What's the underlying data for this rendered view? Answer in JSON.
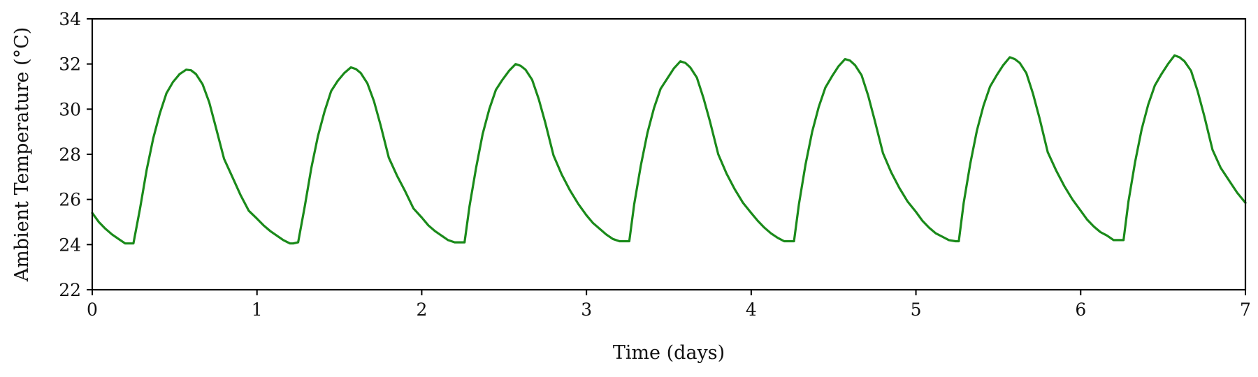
{
  "chart_data": {
    "type": "line",
    "title": "",
    "xlabel": "Time (days)",
    "ylabel": "Ambient Temperature (°C)",
    "xlim": [
      0,
      7
    ],
    "ylim": [
      22,
      34
    ],
    "x_ticks": [
      "0",
      "1",
      "2",
      "3",
      "4",
      "5",
      "6",
      "7"
    ],
    "y_ticks": [
      "22",
      "24",
      "26",
      "28",
      "30",
      "32",
      "34"
    ],
    "grid": false,
    "legend": "none",
    "line_color": "#1a8a1a",
    "series": [
      {
        "x": [
          0.0,
          0.04,
          0.08,
          0.12,
          0.16,
          0.2,
          0.24,
          0.25,
          0.29,
          0.33,
          0.37,
          0.41,
          0.45,
          0.49,
          0.53,
          0.57,
          0.6,
          0.63,
          0.67,
          0.71,
          0.75,
          0.8,
          0.85,
          0.9,
          0.95,
          1.0,
          1.04,
          1.08,
          1.12,
          1.16,
          1.2,
          1.22,
          1.25,
          1.29,
          1.33,
          1.37,
          1.41,
          1.45,
          1.49,
          1.53,
          1.57,
          1.6,
          1.63,
          1.67,
          1.71,
          1.75,
          1.8,
          1.85,
          1.9,
          1.95,
          2.0,
          2.04,
          2.08,
          2.12,
          2.16,
          2.2,
          2.24,
          2.26,
          2.29,
          2.33,
          2.37,
          2.41,
          2.45,
          2.49,
          2.53,
          2.57,
          2.6,
          2.63,
          2.67,
          2.71,
          2.75,
          2.8,
          2.85,
          2.9,
          2.95,
          3.0,
          3.04,
          3.08,
          3.12,
          3.16,
          3.2,
          3.24,
          3.26,
          3.29,
          3.33,
          3.37,
          3.41,
          3.45,
          3.49,
          3.53,
          3.57,
          3.6,
          3.63,
          3.67,
          3.71,
          3.75,
          3.8,
          3.85,
          3.9,
          3.95,
          4.0,
          4.04,
          4.08,
          4.12,
          4.16,
          4.2,
          4.24,
          4.26,
          4.29,
          4.33,
          4.37,
          4.41,
          4.45,
          4.49,
          4.53,
          4.57,
          4.6,
          4.63,
          4.67,
          4.71,
          4.75,
          4.8,
          4.85,
          4.9,
          4.95,
          5.0,
          5.04,
          5.08,
          5.12,
          5.16,
          5.2,
          5.24,
          5.26,
          5.29,
          5.33,
          5.37,
          5.41,
          5.45,
          5.49,
          5.53,
          5.57,
          5.6,
          5.63,
          5.67,
          5.71,
          5.75,
          5.8,
          5.85,
          5.9,
          5.95,
          6.0,
          6.04,
          6.08,
          6.12,
          6.16,
          6.2,
          6.24,
          6.26,
          6.29,
          6.33,
          6.37,
          6.41,
          6.45,
          6.49,
          6.53,
          6.57,
          6.6,
          6.63,
          6.67,
          6.71,
          6.75,
          6.8,
          6.85,
          6.9,
          6.95,
          7.0
        ],
        "y": [
          25.4,
          25.0,
          24.7,
          24.45,
          24.25,
          24.05,
          24.05,
          24.05,
          25.6,
          27.3,
          28.7,
          29.8,
          30.7,
          31.2,
          31.55,
          31.75,
          31.72,
          31.55,
          31.1,
          30.3,
          29.2,
          27.8,
          27.0,
          26.2,
          25.5,
          25.15,
          24.85,
          24.6,
          24.4,
          24.2,
          24.05,
          24.05,
          24.1,
          25.7,
          27.4,
          28.8,
          29.9,
          30.8,
          31.25,
          31.6,
          31.85,
          31.78,
          31.6,
          31.15,
          30.35,
          29.3,
          27.85,
          27.05,
          26.35,
          25.6,
          25.2,
          24.85,
          24.6,
          24.4,
          24.2,
          24.1,
          24.1,
          24.1,
          25.7,
          27.4,
          28.9,
          30.0,
          30.85,
          31.3,
          31.7,
          32.0,
          31.92,
          31.75,
          31.3,
          30.45,
          29.4,
          27.95,
          27.1,
          26.4,
          25.8,
          25.3,
          24.95,
          24.7,
          24.45,
          24.25,
          24.15,
          24.15,
          24.15,
          25.8,
          27.5,
          28.95,
          30.05,
          30.9,
          31.35,
          31.8,
          32.12,
          32.05,
          31.85,
          31.4,
          30.5,
          29.45,
          28.0,
          27.15,
          26.45,
          25.85,
          25.4,
          25.05,
          24.75,
          24.5,
          24.3,
          24.15,
          24.15,
          24.15,
          25.8,
          27.55,
          29.0,
          30.1,
          30.95,
          31.45,
          31.9,
          32.22,
          32.15,
          31.95,
          31.5,
          30.6,
          29.5,
          28.05,
          27.2,
          26.5,
          25.9,
          25.45,
          25.05,
          24.75,
          24.5,
          24.35,
          24.2,
          24.15,
          24.15,
          25.85,
          27.6,
          29.05,
          30.15,
          31.0,
          31.5,
          31.95,
          32.3,
          32.22,
          32.05,
          31.6,
          30.7,
          29.6,
          28.1,
          27.3,
          26.6,
          26.0,
          25.5,
          25.1,
          24.8,
          24.55,
          24.4,
          24.2,
          24.2,
          24.2,
          25.9,
          27.65,
          29.1,
          30.2,
          31.05,
          31.55,
          32.0,
          32.38,
          32.3,
          32.12,
          31.7,
          30.8,
          29.7,
          28.2,
          27.4,
          26.85,
          26.3,
          25.85
        ]
      }
    ]
  }
}
